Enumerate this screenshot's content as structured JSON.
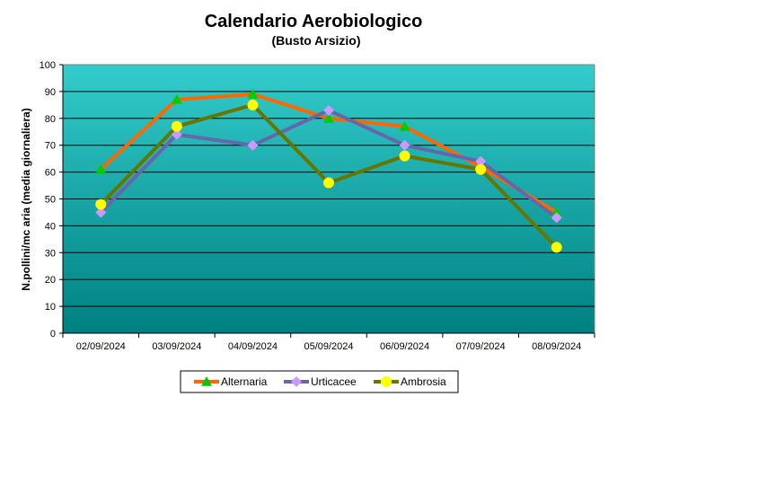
{
  "chart_data": {
    "type": "line",
    "title": "Calendario Aerobiologico",
    "subtitle": "(Busto Arsizio)",
    "xlabel": "",
    "ylabel": "N.pollini/mc aria (media giornaliera)",
    "categories": [
      "02/09/2024",
      "03/09/2024",
      "04/09/2024",
      "05/09/2024",
      "06/09/2024",
      "07/09/2024",
      "08/09/2024"
    ],
    "ylim": [
      0,
      100
    ],
    "yticks": [
      0,
      10,
      20,
      30,
      40,
      50,
      60,
      70,
      80,
      90,
      100
    ],
    "grid": true,
    "legend_position": "bottom",
    "series": [
      {
        "name": "Alternaria",
        "values": [
          61,
          87,
          89,
          80,
          77,
          62,
          45
        ],
        "line_color": "#ff6600",
        "marker_color": "#00cc00",
        "marker": "triangle"
      },
      {
        "name": "Urticacee",
        "values": [
          45,
          74,
          70,
          83,
          70,
          64,
          43
        ],
        "line_color": "#6666aa",
        "marker_color": "#cc99ff",
        "marker": "diamond"
      },
      {
        "name": "Ambrosia",
        "values": [
          48,
          77,
          85,
          56,
          66,
          61,
          32
        ],
        "line_color": "#667700",
        "marker_color": "#ffff00",
        "marker": "circle"
      }
    ],
    "background_gradient": [
      "#33cccc",
      "#008080"
    ]
  }
}
